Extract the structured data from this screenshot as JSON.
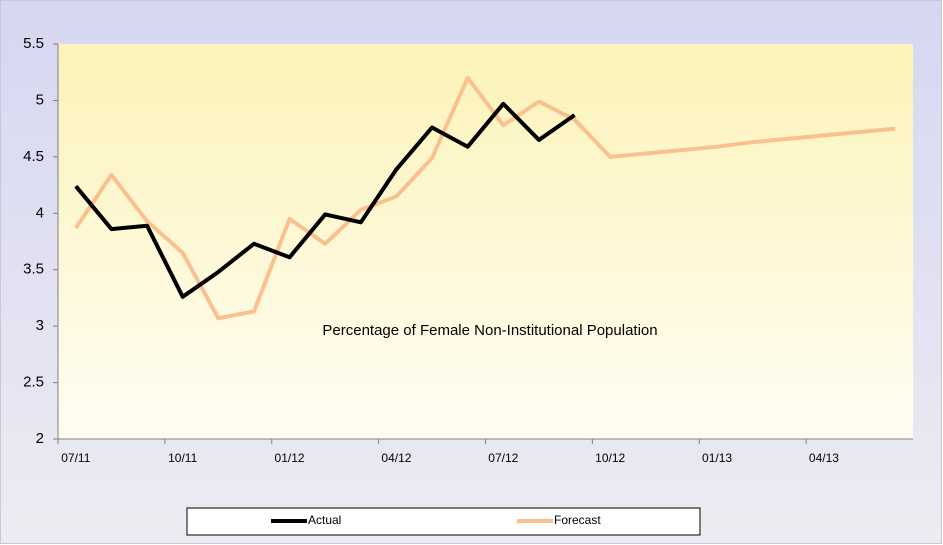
{
  "chart_data": {
    "type": "line",
    "title": "Percentage of Female Non-Institutional Population",
    "categories": [
      "07/11",
      null,
      null,
      "10/11",
      null,
      null,
      "01/12",
      null,
      null,
      "04/12",
      null,
      null,
      "07/12",
      null,
      null,
      "10/12",
      null,
      null,
      "01/13",
      null,
      null,
      "04/13",
      null,
      null
    ],
    "series": [
      {
        "name": "Actual",
        "color": "#000000",
        "values": [
          4.24,
          3.86,
          3.89,
          3.26,
          3.48,
          3.73,
          3.61,
          3.99,
          3.92,
          4.39,
          4.76,
          4.59,
          4.97,
          4.65,
          4.87,
          null,
          null,
          null,
          null,
          null,
          null,
          null,
          null,
          null
        ]
      },
      {
        "name": "Forecast",
        "color": "#fac090",
        "values": [
          3.87,
          4.34,
          3.93,
          3.65,
          3.07,
          3.13,
          3.95,
          3.73,
          4.03,
          4.15,
          4.49,
          5.2,
          4.78,
          4.99,
          4.83,
          4.5,
          4.53,
          4.56,
          4.59,
          4.63,
          4.66,
          4.69,
          4.72,
          4.75
        ]
      }
    ],
    "ylim": [
      2,
      5.5
    ],
    "yticks": [
      2,
      2.5,
      3,
      3.5,
      4,
      4.5,
      5,
      5.5
    ],
    "legend": "bottom"
  }
}
